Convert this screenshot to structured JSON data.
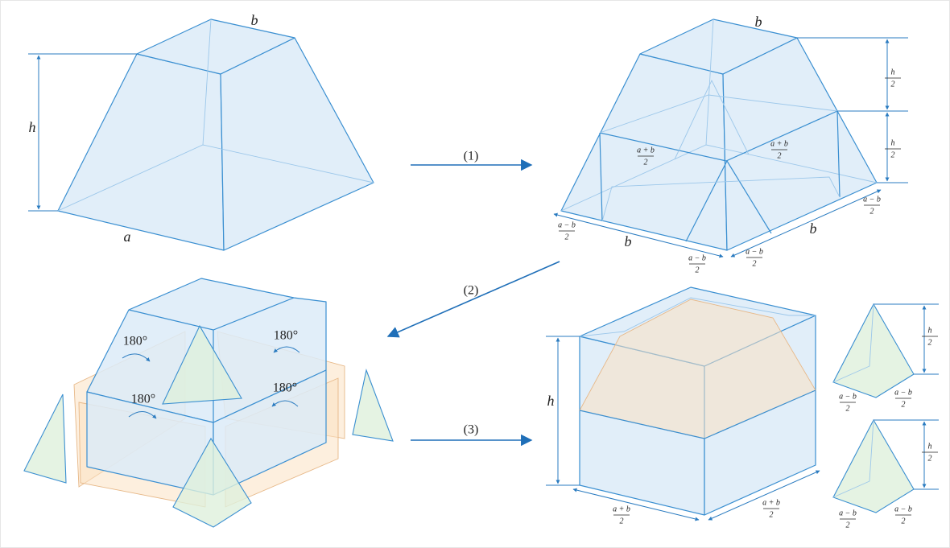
{
  "steps": [
    "(1)",
    "(2)",
    "(3)"
  ],
  "frustum": {
    "top": "b",
    "height": "h",
    "base": "a"
  },
  "split": {
    "top": "b",
    "half_heights": [
      {
        "num": "h",
        "den": "2"
      },
      {
        "num": "h",
        "den": "2"
      }
    ],
    "mid_widths": [
      {
        "num": "a + b",
        "den": "2"
      },
      {
        "num": "a + b",
        "den": "2"
      }
    ],
    "base_left": [
      {
        "num": "a − b",
        "den": "2"
      },
      "b",
      {
        "num": "a − b",
        "den": "2"
      }
    ],
    "base_right": [
      {
        "num": "a − b",
        "den": "2"
      },
      "b",
      {
        "num": "a − b",
        "den": "2"
      }
    ]
  },
  "rotation": {
    "angles": [
      "180°",
      "180°",
      "180°",
      "180°"
    ]
  },
  "result": {
    "height": "h",
    "base": [
      {
        "num": "a + b",
        "den": "2"
      },
      {
        "num": "a + b",
        "den": "2"
      }
    ],
    "pyramids": [
      {
        "height": {
          "num": "h",
          "den": "2"
        },
        "base": [
          {
            "num": "a − b",
            "den": "2"
          },
          {
            "num": "a − b",
            "den": "2"
          }
        ]
      },
      {
        "height": {
          "num": "h",
          "den": "2"
        },
        "base": [
          {
            "num": "a − b",
            "den": "2"
          },
          {
            "num": "a − b",
            "den": "2"
          }
        ]
      }
    ]
  }
}
